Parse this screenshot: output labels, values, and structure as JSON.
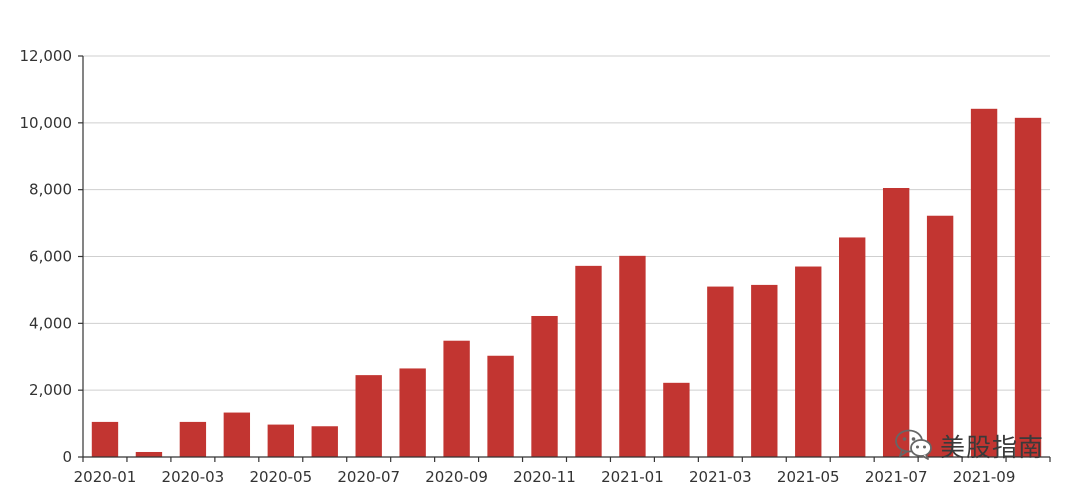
{
  "chart_data": {
    "type": "bar",
    "title": "",
    "xlabel": "",
    "ylabel": "",
    "categories": [
      "2020-01",
      "2020-02",
      "2020-03",
      "2020-04",
      "2020-05",
      "2020-06",
      "2020-07",
      "2020-08",
      "2020-09",
      "2020-10",
      "2020-11",
      "2020-12",
      "2021-01",
      "2021-02",
      "2021-03",
      "2021-04",
      "2021-05",
      "2021-06",
      "2021-07",
      "2021-08",
      "2021-09",
      "2021-10"
    ],
    "values": [
      1050,
      150,
      1050,
      1330,
      970,
      920,
      2450,
      2650,
      3480,
      3030,
      4220,
      5720,
      6020,
      2220,
      5100,
      5150,
      5700,
      6570,
      8050,
      7220,
      10420,
      10150
    ],
    "ylim": [
      0,
      12000
    ],
    "yticks": [
      0,
      2000,
      4000,
      6000,
      8000,
      10000,
      12000
    ],
    "ytick_labels": [
      "0",
      "2,000",
      "4,000",
      "6,000",
      "8,000",
      "10,000",
      "12,000"
    ],
    "xtick_labels": [
      "2020-01",
      "2020-03",
      "2020-05",
      "2020-07",
      "2020-09",
      "2020-11",
      "2021-01",
      "2021-03",
      "2021-05",
      "2021-07",
      "2021-09"
    ],
    "grid": true,
    "bar_color": "#c23531",
    "legend": "none"
  },
  "watermark": {
    "text": "美股指南",
    "icon": "wechat-icon"
  }
}
